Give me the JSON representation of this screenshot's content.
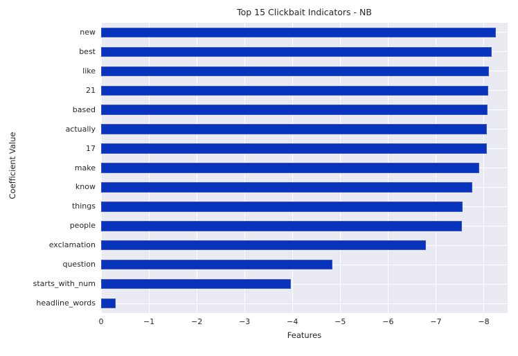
{
  "chart_data": {
    "type": "bar",
    "orientation": "horizontal",
    "title": "Top 15 Clickbait Indicators - NB",
    "xlabel": "Features",
    "ylabel": "Coefficient Value",
    "categories": [
      "new",
      "best",
      "like",
      "21",
      "based",
      "actually",
      "17",
      "make",
      "know",
      "things",
      "people",
      "exclamation",
      "question",
      "starts_with_num",
      "headline_words"
    ],
    "values": [
      -8.25,
      -8.16,
      -8.11,
      -8.09,
      -8.08,
      -8.06,
      -8.06,
      -7.91,
      -7.76,
      -7.56,
      -7.54,
      -6.79,
      -4.83,
      -3.97,
      -0.3
    ],
    "x_ticks": [
      0,
      -1,
      -2,
      -3,
      -4,
      -5,
      -6,
      -7,
      -8
    ],
    "xlim": [
      0,
      -8.5
    ],
    "grid": true,
    "legend": false,
    "bar_color": "#0733bd",
    "plot_bg_color": "#eaeaf2",
    "grid_color": "#ffffff",
    "text_color": "#262626"
  }
}
